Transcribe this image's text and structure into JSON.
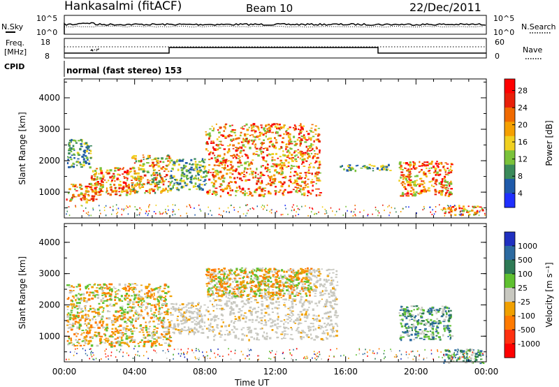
{
  "header": {
    "station": "Hankasalmi (fitACF)",
    "beam": "Beam 10",
    "date": "22/Dec/2011"
  },
  "noise_panel": {
    "left_label": "N.Sky",
    "right_label": "N.Search",
    "left_ticks": [
      "10^5",
      "10^0"
    ],
    "right_ticks": [
      "10^5",
      "10^0"
    ]
  },
  "freq_panel": {
    "left_label_1": "Freq.",
    "left_label_2": "[MHz]",
    "left_ticks": [
      "18",
      "8"
    ],
    "right_label": "Nave",
    "right_ticks": [
      "60",
      "0"
    ]
  },
  "cpid": {
    "label": "CPID",
    "value": "normal (fast stereo) 153"
  },
  "colors": {
    "power": [
      "#1f2fff",
      "#1f5aaa",
      "#3a8a5a",
      "#7ac23a",
      "#f0d020",
      "#f5a000",
      "#f06a00",
      "#e8200a",
      "#ff0000"
    ],
    "velocity": [
      "#2030c0",
      "#2c6aa0",
      "#2e7a55",
      "#5fc030",
      "#c8c8c0",
      "#f0a000",
      "#ff7a00",
      "#ff3010",
      "#ff0000"
    ]
  },
  "chart_data": [
    {
      "type": "heatmap",
      "ylabel": "Slant Range [km]",
      "y_ticks": [
        "1000",
        "2000",
        "3000",
        "4000"
      ],
      "ylim": [
        180,
        4600
      ],
      "x_ticks": [
        "00:00",
        "04:00",
        "08:00",
        "12:00",
        "16:00",
        "20:00",
        "00:00"
      ],
      "xlim": [
        0,
        24
      ],
      "colorbar_label": "Power [dB]",
      "colorbar_ticks": [
        "28",
        "24",
        "20",
        "16",
        "12",
        "8",
        "4"
      ],
      "blobs": [
        {
          "t": [
            0.1,
            1.8
          ],
          "r": [
            700,
            1300
          ],
          "level": "high"
        },
        {
          "t": [
            1.5,
            4.0
          ],
          "r": [
            900,
            1800
          ],
          "level": "high"
        },
        {
          "t": [
            3.8,
            6.0
          ],
          "r": [
            1000,
            2200
          ],
          "level": "mid"
        },
        {
          "t": [
            0.1,
            1.5
          ],
          "r": [
            1800,
            2700
          ],
          "level": "low"
        },
        {
          "t": [
            6.0,
            8.0
          ],
          "r": [
            1100,
            2100
          ],
          "level": "low"
        },
        {
          "t": [
            8.0,
            14.5
          ],
          "r": [
            900,
            3200
          ],
          "level": "high"
        },
        {
          "t": [
            15.5,
            18.5
          ],
          "r": [
            1700,
            1900
          ],
          "level": "low"
        },
        {
          "t": [
            19.0,
            22.0
          ],
          "r": [
            900,
            2000
          ],
          "level": "high"
        },
        {
          "t": [
            21.5,
            23.8
          ],
          "r": [
            300,
            600
          ],
          "level": "high"
        }
      ]
    },
    {
      "type": "heatmap",
      "ylabel": "Slant Range [km]",
      "y_ticks": [
        "1000",
        "2000",
        "3000",
        "4000"
      ],
      "ylim": [
        180,
        4600
      ],
      "x_ticks": [
        "00:00",
        "04:00",
        "08:00",
        "12:00",
        "16:00",
        "20:00",
        "00:00"
      ],
      "xlim": [
        0,
        24
      ],
      "xlabel": "Time UT",
      "colorbar_label": "Velocity [m s⁻¹]",
      "colorbar_ticks": [
        "1000",
        "500",
        "100",
        "25",
        "-25",
        "-100",
        "-500",
        "-1000"
      ],
      "blobs": [
        {
          "t": [
            0.1,
            6.0
          ],
          "r": [
            700,
            2700
          ],
          "level": "mixed"
        },
        {
          "t": [
            6.0,
            8.0
          ],
          "r": [
            1100,
            2100
          ],
          "level": "grey"
        },
        {
          "t": [
            8.0,
            15.5
          ],
          "r": [
            900,
            3200
          ],
          "level": "grey"
        },
        {
          "t": [
            8.0,
            14.0
          ],
          "r": [
            2300,
            3200
          ],
          "level": "orange"
        },
        {
          "t": [
            19.0,
            22.0
          ],
          "r": [
            900,
            2000
          ],
          "level": "green"
        },
        {
          "t": [
            21.5,
            23.8
          ],
          "r": [
            150,
            600
          ],
          "level": "green"
        }
      ]
    }
  ]
}
